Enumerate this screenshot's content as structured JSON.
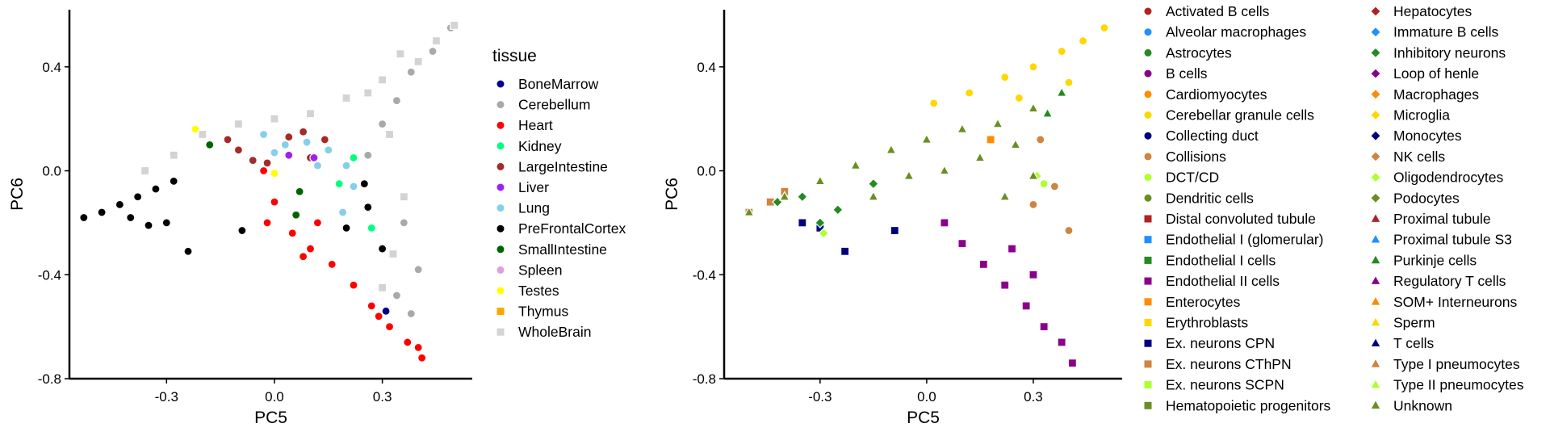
{
  "chart_data": [
    {
      "type": "scatter",
      "xlabel": "PC5",
      "ylabel": "PC6",
      "xlim": [
        -0.57,
        0.55
      ],
      "ylim": [
        -0.8,
        0.62
      ],
      "xticks": [
        "-0.3",
        "0.0",
        "0.3"
      ],
      "xtick_values": [
        -0.3,
        0.0,
        0.3
      ],
      "yticks": [
        "0.4",
        "0.0",
        "-0.4",
        "-0.8"
      ],
      "ytick_values": [
        0.4,
        0.0,
        -0.4,
        -0.8
      ],
      "grid": false,
      "legend": {
        "title": "tissue",
        "placement": "right"
      },
      "series": [
        {
          "name": "BoneMarrow",
          "color": "#00008b",
          "shape": "circle",
          "points": [
            [
              0.31,
              -0.54
            ]
          ]
        },
        {
          "name": "Cerebellum",
          "color": "#a9a9a9",
          "shape": "circle",
          "points": [
            [
              0.49,
              0.55
            ],
            [
              0.44,
              0.46
            ],
            [
              0.38,
              0.38
            ],
            [
              0.34,
              0.27
            ],
            [
              0.3,
              0.18
            ],
            [
              0.26,
              0.06
            ],
            [
              0.36,
              -0.2
            ],
            [
              0.4,
              -0.38
            ],
            [
              0.34,
              -0.48
            ],
            [
              0.38,
              -0.55
            ]
          ]
        },
        {
          "name": "Heart",
          "color": "#ff0000",
          "shape": "circle",
          "points": [
            [
              -0.03,
              0.0
            ],
            [
              0.0,
              -0.12
            ],
            [
              0.05,
              -0.24
            ],
            [
              0.1,
              -0.3
            ],
            [
              0.16,
              -0.36
            ],
            [
              0.22,
              -0.44
            ],
            [
              0.27,
              -0.52
            ],
            [
              0.32,
              -0.6
            ],
            [
              0.37,
              -0.66
            ],
            [
              0.41,
              -0.72
            ],
            [
              0.4,
              -0.68
            ],
            [
              0.29,
              -0.56
            ],
            [
              0.12,
              -0.2
            ],
            [
              0.08,
              -0.33
            ],
            [
              -0.02,
              -0.2
            ]
          ]
        },
        {
          "name": "Kidney",
          "color": "#00ff7f",
          "shape": "circle",
          "points": [
            [
              0.22,
              0.05
            ],
            [
              0.27,
              -0.22
            ],
            [
              0.18,
              -0.05
            ]
          ]
        },
        {
          "name": "LargeIntestine",
          "color": "#a52a2a",
          "shape": "circle",
          "points": [
            [
              -0.1,
              0.08
            ],
            [
              -0.06,
              0.04
            ],
            [
              -0.13,
              0.12
            ],
            [
              0.04,
              0.13
            ],
            [
              0.08,
              0.15
            ],
            [
              0.14,
              0.12
            ],
            [
              -0.02,
              0.03
            ],
            [
              0.1,
              0.05
            ]
          ]
        },
        {
          "name": "Liver",
          "color": "#a020f0",
          "shape": "circle",
          "points": [
            [
              0.04,
              0.06
            ],
            [
              0.11,
              0.05
            ]
          ]
        },
        {
          "name": "Lung",
          "color": "#87ceeb",
          "shape": "circle",
          "points": [
            [
              -0.03,
              0.14
            ],
            [
              0.03,
              0.1
            ],
            [
              0.09,
              0.11
            ],
            [
              0.15,
              0.08
            ],
            [
              0.2,
              0.02
            ],
            [
              0.22,
              -0.06
            ],
            [
              0.0,
              0.07
            ],
            [
              0.12,
              0.02
            ],
            [
              0.19,
              -0.16
            ]
          ]
        },
        {
          "name": "PreFrontalCortex",
          "color": "#000000",
          "shape": "circle",
          "points": [
            [
              -0.53,
              -0.18
            ],
            [
              -0.48,
              -0.16
            ],
            [
              -0.43,
              -0.13
            ],
            [
              -0.38,
              -0.1
            ],
            [
              -0.33,
              -0.07
            ],
            [
              -0.28,
              -0.04
            ],
            [
              -0.4,
              -0.18
            ],
            [
              -0.35,
              -0.21
            ],
            [
              -0.3,
              -0.2
            ],
            [
              -0.24,
              -0.31
            ],
            [
              -0.09,
              -0.23
            ],
            [
              0.2,
              -0.22
            ],
            [
              0.26,
              -0.14
            ],
            [
              0.25,
              -0.05
            ],
            [
              0.3,
              -0.3
            ]
          ]
        },
        {
          "name": "SmallIntestine",
          "color": "#006400",
          "shape": "circle",
          "points": [
            [
              -0.18,
              0.1
            ],
            [
              0.07,
              -0.08
            ],
            [
              0.06,
              -0.17
            ]
          ]
        },
        {
          "name": "Spleen",
          "color": "#dda0dd",
          "shape": "circle",
          "points": []
        },
        {
          "name": "Testes",
          "color": "#ffff00",
          "shape": "circle",
          "points": [
            [
              -0.22,
              0.16
            ],
            [
              0.0,
              -0.01
            ]
          ]
        },
        {
          "name": "Thymus",
          "color": "#ffa500",
          "shape": "square",
          "points": []
        },
        {
          "name": "WholeBrain",
          "color": "#d3d3d3",
          "shape": "square",
          "points": [
            [
              0.5,
              0.56
            ],
            [
              0.45,
              0.5
            ],
            [
              0.4,
              0.42
            ],
            [
              0.3,
              0.35
            ],
            [
              0.2,
              0.28
            ],
            [
              0.1,
              0.22
            ],
            [
              0.0,
              0.2
            ],
            [
              -0.1,
              0.18
            ],
            [
              -0.2,
              0.14
            ],
            [
              -0.28,
              0.06
            ],
            [
              -0.36,
              0.0
            ],
            [
              0.32,
              0.14
            ],
            [
              0.36,
              -0.1
            ],
            [
              0.33,
              -0.32
            ],
            [
              0.3,
              -0.45
            ],
            [
              0.26,
              0.3
            ],
            [
              0.35,
              0.45
            ]
          ]
        }
      ]
    },
    {
      "type": "scatter",
      "xlabel": "PC5",
      "ylabel": "PC6",
      "xlim": [
        -0.57,
        0.55
      ],
      "ylim": [
        -0.8,
        0.62
      ],
      "xticks": [
        "-0.3",
        "0.0",
        "0.3"
      ],
      "xtick_values": [
        -0.3,
        0.0,
        0.3
      ],
      "yticks": [
        "0.4",
        "0.0",
        "-0.4",
        "-0.8"
      ],
      "ytick_values": [
        0.4,
        0.0,
        -0.4,
        -0.8
      ],
      "grid": false,
      "legend": {
        "title": "",
        "placement": "right",
        "columns": 2
      },
      "series": [
        {
          "name": "Activated B cells",
          "color": "#b22222",
          "shape": "circle",
          "points": []
        },
        {
          "name": "Alveolar macrophages",
          "color": "#1e90ff",
          "shape": "circle",
          "points": []
        },
        {
          "name": "Astrocytes",
          "color": "#228b22",
          "shape": "circle",
          "points": []
        },
        {
          "name": "B cells",
          "color": "#8b008b",
          "shape": "circle",
          "points": []
        },
        {
          "name": "Cardiomyocytes",
          "color": "#ff8c00",
          "shape": "circle",
          "points": []
        },
        {
          "name": "Cerebellar granule cells",
          "color": "#ffd700",
          "shape": "circle",
          "points": [
            [
              0.5,
              0.55
            ],
            [
              0.44,
              0.5
            ],
            [
              0.38,
              0.46
            ],
            [
              0.3,
              0.4
            ],
            [
              0.22,
              0.36
            ],
            [
              0.12,
              0.3
            ],
            [
              0.02,
              0.26
            ],
            [
              0.4,
              0.34
            ],
            [
              0.26,
              0.28
            ]
          ]
        },
        {
          "name": "Collecting duct",
          "color": "#000080",
          "shape": "circle",
          "points": []
        },
        {
          "name": "Collisions",
          "color": "#cd853f",
          "shape": "circle",
          "points": [
            [
              0.32,
              0.12
            ],
            [
              0.36,
              -0.06
            ],
            [
              0.3,
              -0.13
            ],
            [
              0.4,
              -0.23
            ]
          ]
        },
        {
          "name": "DCT/CD",
          "color": "#adff2f",
          "shape": "circle",
          "points": [
            [
              0.33,
              -0.05
            ]
          ]
        },
        {
          "name": "Dendritic cells",
          "color": "#6b8e23",
          "shape": "circle",
          "points": []
        },
        {
          "name": "Distal convoluted tubule",
          "color": "#b22222",
          "shape": "square",
          "points": []
        },
        {
          "name": "Endothelial I (glomerular)",
          "color": "#1e90ff",
          "shape": "square",
          "points": []
        },
        {
          "name": "Endothelial I cells",
          "color": "#228b22",
          "shape": "square",
          "points": []
        },
        {
          "name": "Endothelial II cells",
          "color": "#8b008b",
          "shape": "square",
          "points": [
            [
              0.05,
              -0.2
            ],
            [
              0.1,
              -0.28
            ],
            [
              0.16,
              -0.36
            ],
            [
              0.22,
              -0.44
            ],
            [
              0.28,
              -0.52
            ],
            [
              0.33,
              -0.6
            ],
            [
              0.38,
              -0.66
            ],
            [
              0.41,
              -0.74
            ],
            [
              0.3,
              -0.4
            ],
            [
              0.24,
              -0.3
            ]
          ]
        },
        {
          "name": "Enterocytes",
          "color": "#ff8c00",
          "shape": "square",
          "points": [
            [
              0.18,
              0.12
            ]
          ]
        },
        {
          "name": "Erythroblasts",
          "color": "#ffd700",
          "shape": "square",
          "points": []
        },
        {
          "name": "Ex. neurons CPN",
          "color": "#000080",
          "shape": "square",
          "points": [
            [
              -0.35,
              -0.2
            ],
            [
              -0.23,
              -0.31
            ],
            [
              -0.09,
              -0.23
            ],
            [
              -0.3,
              -0.22
            ]
          ]
        },
        {
          "name": "Ex. neurons CThPN",
          "color": "#cd853f",
          "shape": "square",
          "points": [
            [
              -0.5,
              -0.16
            ],
            [
              -0.44,
              -0.12
            ],
            [
              -0.4,
              -0.08
            ]
          ]
        },
        {
          "name": "Ex. neurons SCPN",
          "color": "#adff2f",
          "shape": "square",
          "points": []
        },
        {
          "name": "Hematopoietic progenitors",
          "color": "#6b8e23",
          "shape": "square",
          "points": []
        },
        {
          "name": "Hepatocytes",
          "color": "#b22222",
          "shape": "diamond",
          "points": []
        },
        {
          "name": "Immature B cells",
          "color": "#1e90ff",
          "shape": "diamond",
          "points": []
        },
        {
          "name": "Inhibitory neurons",
          "color": "#228b22",
          "shape": "diamond",
          "points": [
            [
              -0.35,
              -0.1
            ],
            [
              -0.25,
              -0.15
            ],
            [
              -0.15,
              -0.05
            ],
            [
              -0.42,
              -0.12
            ],
            [
              -0.3,
              -0.2
            ]
          ]
        },
        {
          "name": "Loop of henle",
          "color": "#8b008b",
          "shape": "diamond",
          "points": []
        },
        {
          "name": "Macrophages",
          "color": "#ff8c00",
          "shape": "diamond",
          "points": []
        },
        {
          "name": "Microglia",
          "color": "#ffd700",
          "shape": "diamond",
          "points": []
        },
        {
          "name": "Monocytes",
          "color": "#000080",
          "shape": "diamond",
          "points": []
        },
        {
          "name": "NK cells",
          "color": "#cd853f",
          "shape": "diamond",
          "points": []
        },
        {
          "name": "Oligodendrocytes",
          "color": "#adff2f",
          "shape": "diamond",
          "points": [
            [
              -0.29,
              -0.24
            ],
            [
              0.31,
              -0.02
            ]
          ]
        },
        {
          "name": "Podocytes",
          "color": "#6b8e23",
          "shape": "diamond",
          "points": []
        },
        {
          "name": "Proximal tubule",
          "color": "#b22222",
          "shape": "triangle",
          "points": []
        },
        {
          "name": "Proximal tubule S3",
          "color": "#1e90ff",
          "shape": "triangle",
          "points": []
        },
        {
          "name": "Purkinje cells",
          "color": "#228b22",
          "shape": "triangle",
          "points": [
            [
              0.34,
              0.22
            ],
            [
              0.38,
              0.3
            ]
          ]
        },
        {
          "name": "Regulatory T cells",
          "color": "#8b008b",
          "shape": "triangle",
          "points": []
        },
        {
          "name": "SOM+ Interneurons",
          "color": "#ff8c00",
          "shape": "triangle",
          "points": []
        },
        {
          "name": "Sperm",
          "color": "#ffd700",
          "shape": "triangle",
          "points": []
        },
        {
          "name": "T cells",
          "color": "#000080",
          "shape": "triangle",
          "points": []
        },
        {
          "name": "Type I pneumocytes",
          "color": "#cd853f",
          "shape": "triangle",
          "points": []
        },
        {
          "name": "Type II pneumocytes",
          "color": "#adff2f",
          "shape": "triangle",
          "points": []
        },
        {
          "name": "Unknown",
          "color": "#6b8e23",
          "shape": "triangle",
          "points": [
            [
              -0.5,
              -0.16
            ],
            [
              -0.4,
              -0.1
            ],
            [
              -0.3,
              -0.04
            ],
            [
              -0.2,
              0.02
            ],
            [
              -0.1,
              0.08
            ],
            [
              0.0,
              0.12
            ],
            [
              0.1,
              0.16
            ],
            [
              0.2,
              0.18
            ],
            [
              0.3,
              0.24
            ],
            [
              -0.15,
              -0.1
            ],
            [
              0.05,
              0.0
            ],
            [
              0.15,
              0.05
            ],
            [
              0.25,
              0.1
            ],
            [
              0.3,
              -0.02
            ],
            [
              -0.05,
              -0.02
            ],
            [
              0.22,
              -0.1
            ]
          ]
        }
      ]
    }
  ]
}
